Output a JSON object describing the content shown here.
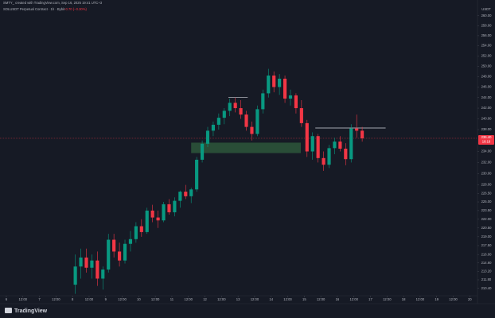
{
  "header": {
    "author_line": "SMTY_ created with TradingView.com, Sep 16, 2025 19:41 UTC+3",
    "brand": "TradingView"
  },
  "chart_data": {
    "type": "candlestick",
    "symbol": "SOLUSDT Perpetual Contract · 1h · Bybit",
    "change": "−0.70 (−0.30%)",
    "currency": "USDT",
    "log_scale": true,
    "up_color": "#089981",
    "down_color": "#f23645",
    "x": [
      50,
      54,
      58,
      62,
      66,
      70,
      74,
      78,
      82,
      86,
      90,
      94,
      98,
      102,
      106,
      110,
      114,
      118,
      122,
      126,
      130,
      134,
      138,
      142,
      146,
      150,
      154,
      158,
      162,
      166,
      170,
      174,
      178,
      182,
      186,
      190,
      194,
      198,
      202,
      206,
      210,
      214,
      218,
      222,
      226,
      230,
      234,
      238,
      242,
      246,
      250,
      254,
      258
    ],
    "open": [
      211,
      214,
      215.5,
      213.8,
      215,
      212,
      213.5,
      218.5,
      216.5,
      215,
      217.8,
      218.6,
      220.8,
      219.8,
      223.5,
      222.3,
      221.8,
      224.6,
      223.2,
      225.2,
      226.8,
      226,
      227.2,
      232.5,
      235.4,
      237.8,
      238.9,
      240.2,
      241.5,
      243,
      242,
      240.8,
      238.5,
      237.2,
      241.8,
      244.8,
      248.2,
      246,
      247.6,
      243.8,
      244.4,
      242,
      239.2,
      234,
      236.8,
      232.8,
      231.6,
      234.6,
      235.8,
      234.5,
      232.6,
      238.2,
      237.8
    ],
    "high": [
      216,
      217,
      217,
      216,
      216.5,
      214,
      219.5,
      219.5,
      218,
      218.5,
      220,
      221.5,
      222,
      224,
      224.5,
      223.5,
      225,
      225.5,
      225.8,
      227,
      228,
      227.5,
      233,
      236,
      238.5,
      239.5,
      241,
      242,
      243.8,
      244,
      243.5,
      241.5,
      239.5,
      242.5,
      245.5,
      249.5,
      249,
      248.5,
      248.2,
      245.5,
      244.8,
      243.5,
      239.8,
      237.5,
      237.2,
      234,
      235.2,
      236.5,
      236.8,
      235.5,
      239,
      240.8,
      238.5
    ],
    "low": [
      209.5,
      212,
      213,
      212,
      210.8,
      210.2,
      213,
      215.5,
      214,
      214.5,
      216.5,
      218,
      219,
      219.5,
      221.5,
      220.5,
      221.5,
      222.8,
      222.5,
      224,
      225.5,
      224.8,
      226.8,
      232,
      234.8,
      236.8,
      238,
      239,
      240.5,
      241.2,
      240,
      237.8,
      236,
      236.8,
      241,
      244,
      245,
      244.5,
      243,
      242.5,
      241,
      238.5,
      233,
      232.5,
      232,
      230.5,
      231,
      233.5,
      234,
      231.5,
      232,
      236.5,
      235.8
    ],
    "close": [
      214,
      215.5,
      213.8,
      215,
      212,
      213.5,
      218.5,
      216.5,
      215,
      217.8,
      218.6,
      220.8,
      219.8,
      223.5,
      222.3,
      221.8,
      224.6,
      223.2,
      225.2,
      226.8,
      226,
      227.2,
      232.5,
      235.4,
      237.8,
      238.9,
      240.2,
      241.5,
      243,
      242,
      240.8,
      238.5,
      237.2,
      241.8,
      244.8,
      248.2,
      246,
      247.6,
      243.8,
      244.4,
      242,
      239.2,
      234,
      236.8,
      232.8,
      231.6,
      234.6,
      235.8,
      234.5,
      232.6,
      238.2,
      237.8,
      236.4
    ],
    "last_price": {
      "value": 236.4,
      "label": "236.40"
    },
    "countdown": "18:19",
    "zone": {
      "x": [
        134,
        213.5
      ],
      "y": [
        233.7,
        235.6
      ],
      "color": "#2e5a3c"
    },
    "levels": [
      {
        "x": [
          161,
          175
        ],
        "y": 244
      },
      {
        "x": [
          224,
          275
        ],
        "y": 238.3
      }
    ],
    "xlim": [
      -4.6,
      341.6
    ],
    "ylim": [
      209.2,
      261.9
    ],
    "xticks": [
      {
        "value": 0,
        "label": "6"
      },
      {
        "value": 12,
        "label": "12:00"
      },
      {
        "value": 24,
        "label": "7"
      },
      {
        "value": 36,
        "label": "12:00"
      },
      {
        "value": 48,
        "label": "8"
      },
      {
        "value": 60,
        "label": "12:00"
      },
      {
        "value": 72,
        "label": "9"
      },
      {
        "value": 84,
        "label": "12:00"
      },
      {
        "value": 96,
        "label": "10"
      },
      {
        "value": 108,
        "label": "12:00"
      },
      {
        "value": 120,
        "label": "11"
      },
      {
        "value": 132,
        "label": "12:00"
      },
      {
        "value": 144,
        "label": "12"
      },
      {
        "value": 156,
        "label": "12:00"
      },
      {
        "value": 168,
        "label": "13"
      },
      {
        "value": 180,
        "label": "12:00"
      },
      {
        "value": 192,
        "label": "14"
      },
      {
        "value": 204,
        "label": "12:00"
      },
      {
        "value": 216,
        "label": "15"
      },
      {
        "value": 228,
        "label": "12:00"
      },
      {
        "value": 240,
        "label": "16"
      },
      {
        "value": 252,
        "label": "12:00"
      },
      {
        "value": 264,
        "label": "17"
      },
      {
        "value": 276,
        "label": "12:00"
      },
      {
        "value": 288,
        "label": "18"
      },
      {
        "value": 300,
        "label": "12:00"
      },
      {
        "value": 312,
        "label": "19"
      },
      {
        "value": 324,
        "label": "12:00"
      },
      {
        "value": 336,
        "label": "20"
      }
    ],
    "yticks": [
      {
        "value": 260,
        "label": "260.00"
      },
      {
        "value": 258,
        "label": "258.00"
      },
      {
        "value": 256,
        "label": "256.00"
      },
      {
        "value": 254,
        "label": "254.00"
      },
      {
        "value": 252,
        "label": "252.00"
      },
      {
        "value": 250,
        "label": "250.00"
      },
      {
        "value": 248,
        "label": "248.00"
      },
      {
        "value": 246,
        "label": "246.00"
      },
      {
        "value": 244,
        "label": "244.00"
      },
      {
        "value": 242,
        "label": "242.00"
      },
      {
        "value": 240,
        "label": "240.00"
      },
      {
        "value": 238,
        "label": "238.00"
      },
      {
        "value": 234,
        "label": "234.00"
      },
      {
        "value": 232,
        "label": "232.00"
      },
      {
        "value": 230,
        "label": "230.00"
      },
      {
        "value": 228,
        "label": "228.00"
      },
      {
        "value": 226.5,
        "label": "226.50"
      },
      {
        "value": 225,
        "label": "225.00"
      },
      {
        "value": 223.5,
        "label": "223.50"
      },
      {
        "value": 222,
        "label": "222.00"
      },
      {
        "value": 220.5,
        "label": "220.50"
      },
      {
        "value": 219,
        "label": "219.00"
      },
      {
        "value": 217.5,
        "label": "217.50"
      },
      {
        "value": 216,
        "label": "216.00"
      },
      {
        "value": 214.6,
        "label": "214.60"
      },
      {
        "value": 213.2,
        "label": "213.20"
      },
      {
        "value": 211.8,
        "label": "211.80"
      },
      {
        "value": 210.4,
        "label": "210.40"
      }
    ]
  }
}
